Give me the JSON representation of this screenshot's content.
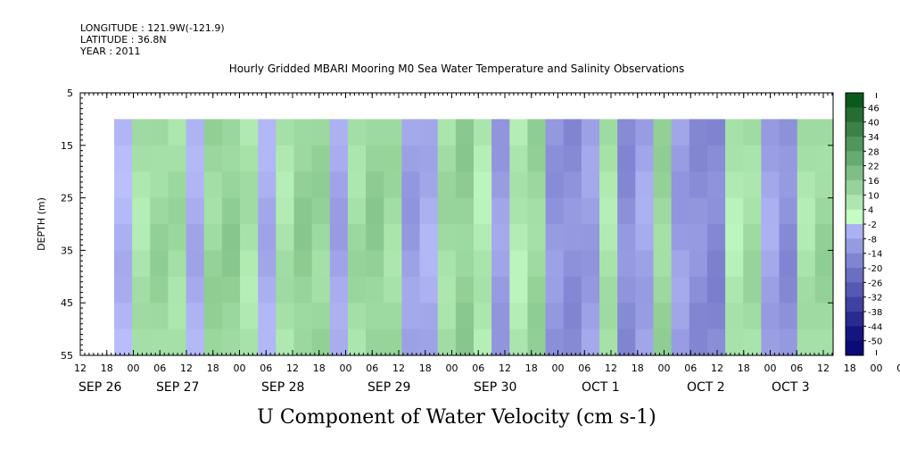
{
  "header": {
    "longitude": "LONGITUDE : 121.9W(-121.9)",
    "latitude": "LATITUDE : 36.8N",
    "year": "YEAR : 2011"
  },
  "chart_data": {
    "type": "heatmap",
    "title": "Hourly Gridded MBARI Mooring M0 Sea Water Temperature and Salinity Observations",
    "xlabel": "U Component of Water Velocity (cm s-1)",
    "ylabel": "DEPTH (m)",
    "y_axis": {
      "range": [
        5,
        55
      ],
      "inverted": true,
      "ticks": [
        5,
        15,
        25,
        35,
        45,
        55
      ]
    },
    "x_axis": {
      "start_hour_labels": [
        "12",
        "18",
        "00",
        "06",
        "12",
        "18",
        "00",
        "06",
        "12",
        "18",
        "00",
        "06",
        "12",
        "18",
        "00",
        "06",
        "12",
        "18",
        "00",
        "06",
        "12",
        "18",
        "00",
        "06",
        "12",
        "18",
        "00",
        "06",
        "12",
        "18",
        "00",
        "06",
        "12"
      ],
      "day_labels": [
        "SEP 26",
        "SEP 27",
        "SEP 28",
        "SEP 29",
        "SEP 30",
        "OCT  1",
        "OCT  2",
        "OCT  3"
      ]
    },
    "data_extent": {
      "depth_range": [
        10,
        55
      ]
    },
    "colorbar": {
      "levels": [
        "46",
        "40",
        "34",
        "28",
        "22",
        "16",
        "10",
        "4",
        "-2",
        "-8",
        "-14",
        "-20",
        "-26",
        "-32",
        "-38",
        "-44",
        "-50"
      ],
      "range": [
        -50,
        52
      ],
      "colors_negative": "#0a0a78-#b4bcff (blue)",
      "colors_positive": "#c8ffc8-#004a10 (green)"
    },
    "profile": {
      "description_values_by_column": [
        -4,
        8,
        12,
        10,
        -6,
        12,
        14,
        8,
        -6,
        8,
        14,
        12,
        -8,
        10,
        14,
        10,
        -10,
        -6,
        10,
        14,
        6,
        -10,
        6,
        12,
        -12,
        -14,
        -10,
        8,
        -14,
        -8,
        12,
        -10,
        -14,
        -16,
        6,
        10,
        -8,
        -14,
        8,
        12
      ]
    }
  }
}
